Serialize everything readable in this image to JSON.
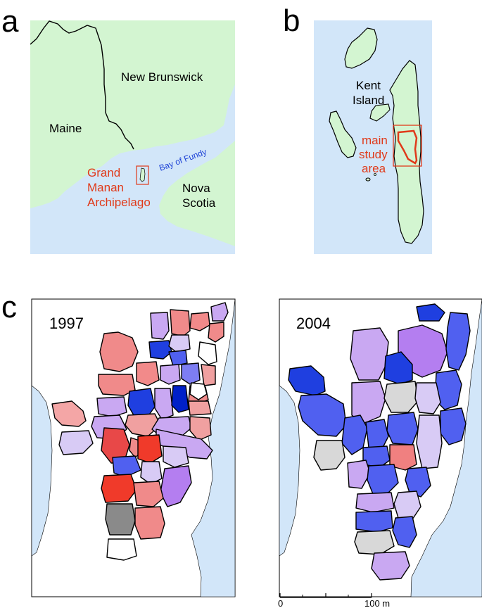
{
  "panels": {
    "a": {
      "label": "a",
      "regions": {
        "maine": "Maine",
        "new_brunswick": "New Brunswick",
        "nova": "Nova",
        "scotia": "Scotia"
      },
      "water": "Bay of Fundy",
      "highlight": {
        "line1": "Grand",
        "line2": "Manan",
        "line3": "Archipelago"
      }
    },
    "b": {
      "label": "b",
      "kent_line1": "Kent",
      "kent_line2": "Island",
      "study_line1": "main",
      "study_line2": "study",
      "study_line3": "area"
    },
    "c": {
      "label": "c",
      "left_year": "1997",
      "right_year": "2004"
    }
  },
  "scale_bar": {
    "start_label": "0",
    "end_label": "100 m"
  },
  "colors": {
    "land": "#d3f5d1",
    "water": "#d2e6f9",
    "highlight_red": "#e03a1a",
    "water_label_blue": "#1a3fd6"
  }
}
